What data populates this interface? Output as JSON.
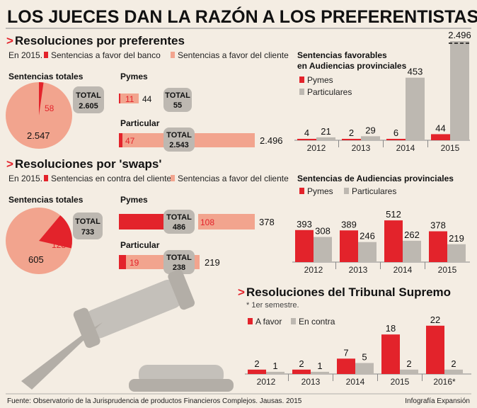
{
  "header": {
    "title": "LOS JUECES DAN LA RAZÓN A LOS PREFERENTISTAS",
    "source": "Fuente: Observatorio de la Jurisprudencia de productos Financieros Complejos. Jausas. 2015",
    "credit": "Infografía Expansión"
  },
  "colors": {
    "red": "#e3232b",
    "salmon": "#f2a48e",
    "gray": "#bdb8b1",
    "background": "#f4ede3",
    "text": "#222222"
  },
  "chart_data": [
    {
      "type": "pie",
      "title": "Resoluciones por preferentes",
      "legend_prefix": "En 2015.",
      "legend": [
        "Sentencias a favor del banco",
        "Sentencias a favor del cliente"
      ],
      "subtitle": "Sentencias totales",
      "slices": [
        {
          "label": "Sentencias a favor del banco",
          "value": 58
        },
        {
          "label": "Sentencias a favor del cliente",
          "value": 2547
        }
      ],
      "total_label": "TOTAL",
      "total": "2.605",
      "value_labels": [
        "58",
        "2.547"
      ]
    },
    {
      "type": "bar",
      "title": "Resoluciones por preferentes — Pymes y Particular",
      "categories": [
        "Pymes",
        "Particular"
      ],
      "series": [
        {
          "name": "Sentencias a favor del banco",
          "values": [
            11,
            47
          ]
        },
        {
          "name": "Sentencias a favor del cliente",
          "values": [
            44,
            2496
          ]
        }
      ],
      "totals": [
        "55",
        "2.543"
      ],
      "value_labels": {
        "bank": [
          "11",
          "47"
        ],
        "client": [
          "44",
          "2.496"
        ]
      },
      "total_label": "TOTAL"
    },
    {
      "type": "pie",
      "title": "Resoluciones por 'swaps'",
      "legend_prefix": "En 2015.",
      "legend": [
        "Sentencias en contra del cliente",
        "Sentencias a favor del cliente"
      ],
      "subtitle": "Sentencias totales",
      "slices": [
        {
          "label": "Sentencias en contra del cliente",
          "value": 128
        },
        {
          "label": "Sentencias a favor del cliente",
          "value": 605
        }
      ],
      "total_label": "TOTAL",
      "total": "733",
      "value_labels": [
        "128",
        "605"
      ]
    },
    {
      "type": "bar",
      "title": "Resoluciones por 'swaps' — Pymes y Particular",
      "categories": [
        "Pymes",
        "Particular"
      ],
      "series": [
        {
          "name": "Sentencias en contra del cliente",
          "values": [
            378,
            19
          ]
        },
        {
          "name": "Sentencias a favor del cliente",
          "values": [
            108,
            219
          ]
        }
      ],
      "totals": [
        "486",
        "238"
      ],
      "value_labels": {
        "against": [
          "",
          "19"
        ],
        "client": [
          "108",
          "219"
        ],
        "pymes_total": "378"
      },
      "total_label": "TOTAL"
    },
    {
      "type": "bar",
      "title": "Sentencias favorables en Audiencias provinciales",
      "categories": [
        "2012",
        "2013",
        "2014",
        "2015"
      ],
      "series": [
        {
          "name": "Pymes",
          "values": [
            4,
            2,
            6,
            44
          ]
        },
        {
          "name": "Particulares",
          "values": [
            21,
            29,
            453,
            2496
          ]
        }
      ],
      "value_labels": {
        "Pymes": [
          "4",
          "2",
          "6",
          "44"
        ],
        "Particulares": [
          "21",
          "29",
          "453",
          "2.496"
        ]
      },
      "broken_axis": true
    },
    {
      "type": "bar",
      "title": "Sentencias de Audiencias provinciales",
      "categories": [
        "2012",
        "2013",
        "2014",
        "2015"
      ],
      "series": [
        {
          "name": "Pymes",
          "values": [
            393,
            389,
            512,
            378
          ]
        },
        {
          "name": "Particulares",
          "values": [
            308,
            246,
            262,
            219
          ]
        }
      ]
    },
    {
      "type": "bar",
      "title": "Resoluciones del Tribunal Supremo",
      "note": "* 1er semestre.",
      "categories": [
        "2012",
        "2013",
        "2014",
        "2015",
        "2016*"
      ],
      "series": [
        {
          "name": "A favor",
          "values": [
            2,
            2,
            7,
            18,
            22
          ]
        },
        {
          "name": "En contra",
          "values": [
            1,
            1,
            5,
            2,
            2
          ]
        }
      ]
    }
  ]
}
